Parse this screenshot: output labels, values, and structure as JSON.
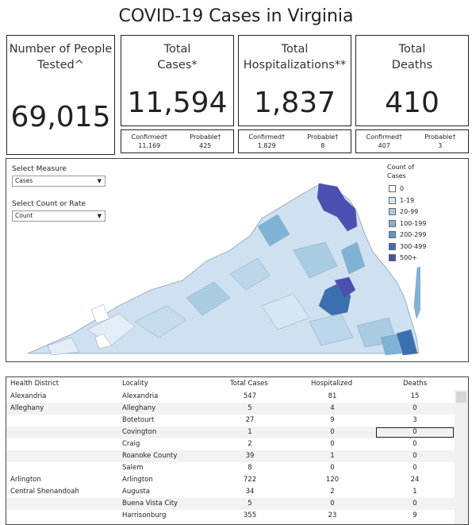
{
  "page": {
    "title": "COVID-19 Cases in Virginia"
  },
  "cards": {
    "tested": {
      "label": "Number of People\nTested^",
      "value": "69,015"
    },
    "cases": {
      "label": "Total\nCases*",
      "value": "11,594",
      "confirmed_label": "Confirmed†",
      "confirmed_value": "11,169",
      "probable_label": "Probable†",
      "probable_value": "425"
    },
    "hospitalizations": {
      "label": "Total\nHospitalizations**",
      "value": "1,837",
      "confirmed_label": "Confirmed†",
      "confirmed_value": "1,829",
      "probable_label": "Probable†",
      "probable_value": "8"
    },
    "deaths": {
      "label": "Total\nDeaths",
      "value": "410",
      "confirmed_label": "Confirmed†",
      "confirmed_value": "407",
      "probable_label": "Probable†",
      "probable_value": "3"
    }
  },
  "controls": {
    "measure_label": "Select Measure",
    "measure_value": "Cases",
    "count_rate_label": "Select Count or Rate",
    "count_rate_value": "Count",
    "dropdown_arrow": "▼"
  },
  "legend": {
    "title": "Count of\nCases",
    "items": [
      {
        "label": "0",
        "color": "#ffffff"
      },
      {
        "label": "1-19",
        "color": "#d7e6f3"
      },
      {
        "label": "20-99",
        "color": "#a9cce3"
      },
      {
        "label": "100-199",
        "color": "#7fb3d5"
      },
      {
        "label": "200-299",
        "color": "#5b9bc8"
      },
      {
        "label": "300-499",
        "color": "#3a70b0"
      },
      {
        "label": "500+",
        "color": "#4a4fb0"
      }
    ]
  },
  "table": {
    "headers": {
      "district": "Health District",
      "locality": "Locality",
      "cases": "Total Cases",
      "hospitalized": "Hospitalized",
      "deaths": "Deaths"
    },
    "rows": [
      {
        "district": "Alexandria",
        "locality": "Alexandria",
        "cases": "547",
        "hospitalized": "81",
        "deaths": "15"
      },
      {
        "district": "Alleghany",
        "locality": "Alleghany",
        "cases": "5",
        "hospitalized": "4",
        "deaths": "0"
      },
      {
        "district": "",
        "locality": "Botetourt",
        "cases": "27",
        "hospitalized": "9",
        "deaths": "3"
      },
      {
        "district": "",
        "locality": "Covington",
        "cases": "1",
        "hospitalized": "0",
        "deaths": "0"
      },
      {
        "district": "",
        "locality": "Craig",
        "cases": "2",
        "hospitalized": "0",
        "deaths": "0"
      },
      {
        "district": "",
        "locality": "Roanoke County",
        "cases": "39",
        "hospitalized": "1",
        "deaths": "0"
      },
      {
        "district": "",
        "locality": "Salem",
        "cases": "8",
        "hospitalized": "0",
        "deaths": "0"
      },
      {
        "district": "Arlington",
        "locality": "Arlington",
        "cases": "722",
        "hospitalized": "120",
        "deaths": "24"
      },
      {
        "district": "Central Shenandoah",
        "locality": "Augusta",
        "cases": "34",
        "hospitalized": "2",
        "deaths": "1"
      },
      {
        "district": "",
        "locality": "Buena Vista City",
        "cases": "5",
        "hospitalized": "0",
        "deaths": "0"
      },
      {
        "district": "",
        "locality": "Harrisonburg",
        "cases": "355",
        "hospitalized": "23",
        "deaths": "9"
      }
    ]
  }
}
